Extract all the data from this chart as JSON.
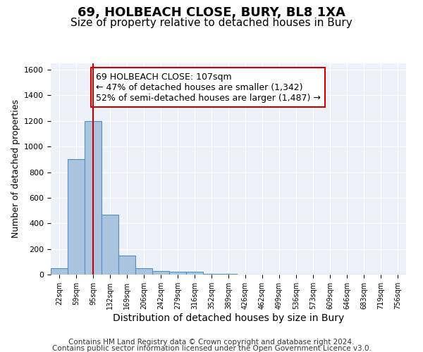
{
  "title1": "69, HOLBEACH CLOSE, BURY, BL8 1XA",
  "title2": "Size of property relative to detached houses in Bury",
  "xlabel": "Distribution of detached houses by size in Bury",
  "ylabel": "Number of detached properties",
  "footer1": "Contains HM Land Registry data © Crown copyright and database right 2024.",
  "footer2": "Contains public sector information licensed under the Open Government Licence v3.0.",
  "bin_labels": [
    "22sqm",
    "59sqm",
    "95sqm",
    "132sqm",
    "169sqm",
    "206sqm",
    "242sqm",
    "279sqm",
    "316sqm",
    "352sqm",
    "389sqm",
    "426sqm",
    "462sqm",
    "499sqm",
    "536sqm",
    "573sqm",
    "609sqm",
    "646sqm",
    "683sqm",
    "719sqm",
    "756sqm"
  ],
  "bar_values": [
    50,
    900,
    1200,
    470,
    150,
    50,
    25,
    20,
    20,
    5,
    5,
    0,
    0,
    0,
    0,
    0,
    0,
    0,
    0,
    0,
    0
  ],
  "bar_color": "#aac4e0",
  "bar_edge_color": "#5090c0",
  "background_color": "#eef2f8",
  "grid_color": "#ffffff",
  "red_line_x": 2,
  "red_line_color": "#cc0000",
  "annotation_text": "69 HOLBEACH CLOSE: 107sqm\n← 47% of detached houses are smaller (1,342)\n52% of semi-detached houses are larger (1,487) →",
  "annotation_box_color": "#cc0000",
  "annotation_bg": "#ffffff",
  "ylim": [
    0,
    1650
  ],
  "yticks": [
    0,
    200,
    400,
    600,
    800,
    1000,
    1200,
    1400,
    1600
  ],
  "title1_fontsize": 13,
  "title2_fontsize": 11,
  "annotation_fontsize": 9,
  "ylabel_fontsize": 9,
  "xlabel_fontsize": 10,
  "footer_fontsize": 7.5
}
